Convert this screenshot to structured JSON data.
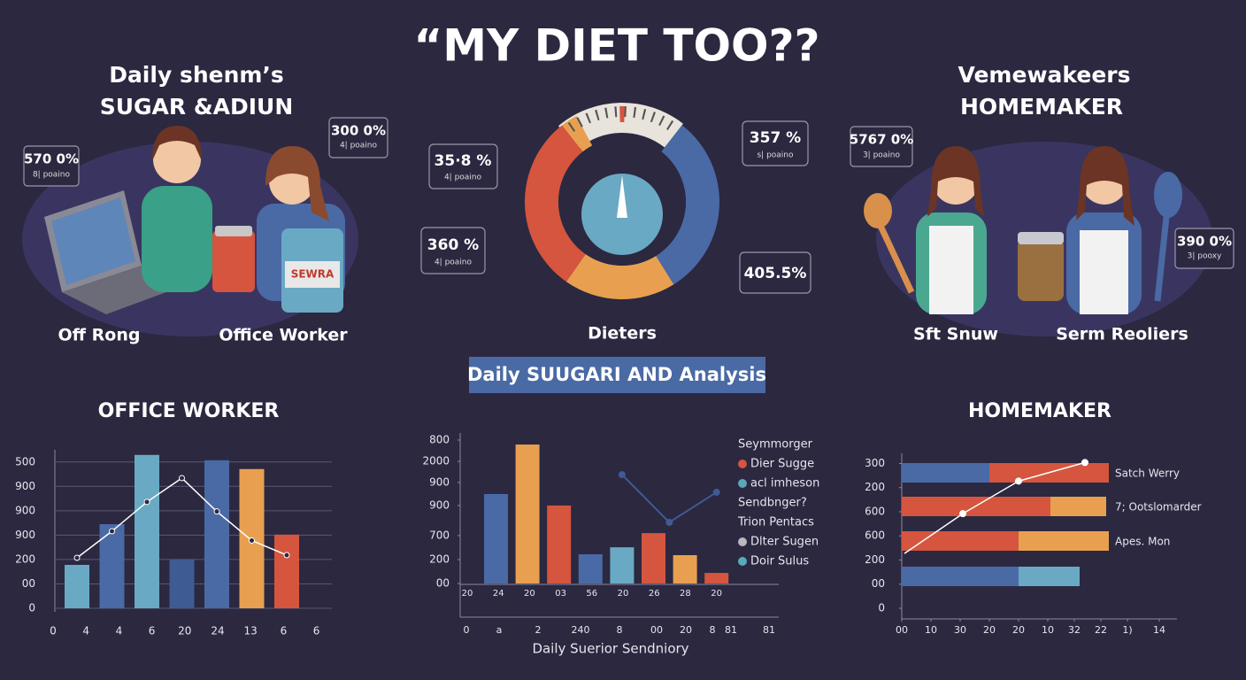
{
  "title": "“MY DIET TOO??",
  "left_panel": {
    "heading_line1": "Daily shenm’s",
    "heading_line2": "SUGAR &ADIUN",
    "callout_1": {
      "value": "570 0%",
      "sub": "8| poaino"
    },
    "callout_2": {
      "value": "300 0%",
      "sub": "4| poaino"
    },
    "label_1": "Off Rong",
    "label_2": "Office Worker"
  },
  "center_panel": {
    "callout_1": {
      "value": "35·8 %",
      "sub": "4| poaino"
    },
    "callout_2": {
      "value": "360 %",
      "sub": "4| poaino"
    },
    "callout_3": {
      "value": "357 %",
      "sub": "s| poaino"
    },
    "callout_4": {
      "value": "405.5%"
    },
    "label": "Dieters"
  },
  "right_panel": {
    "heading_line1": "Vemewakeers",
    "heading_line2": "HOMEMAKER",
    "callout_1": {
      "value": "5767 0%",
      "sub": "3| poaino"
    },
    "callout_2": {
      "value": "390 0%",
      "sub": "3| pooxy"
    },
    "label_1": "Sft Snuw",
    "label_2": "Serm Reoliers"
  },
  "banner": "Daily SUUGARI AND Analysis",
  "chart_data": [
    {
      "type": "bar",
      "title": "OFFICE WORKER",
      "values": [
        178,
        345,
        629,
        200,
        607,
        571,
        302
      ],
      "colors": [
        "#6aa9c4",
        "#4a6aa5",
        "#6aa9c4",
        "#3f5b94",
        "#4a6aa5",
        "#e8a050",
        "#d5553f"
      ],
      "ylim": [
        0,
        650
      ],
      "yticks": [
        0,
        {
          "value": 100,
          "label": "00"
        },
        200,
        {
          "value": 300,
          "label": "900"
        },
        {
          "value": 400,
          "label": "900"
        },
        {
          "value": 500,
          "label": "900"
        },
        {
          "value": 600,
          "label": "500"
        }
      ],
      "x_labels": [
        "0",
        "4",
        "4",
        "6",
        "20",
        "24",
        "13",
        "6",
        "6"
      ],
      "line": {
        "color": "#ffffff",
        "values": [
          207,
          316,
          436,
          534,
          397,
          278,
          218
        ]
      },
      "grid": true
    },
    {
      "type": "bar",
      "values": [
        499,
        775,
        435,
        163,
        202,
        281,
        158,
        59
      ],
      "colors": [
        "#4a6aa5",
        "#e8a050",
        "#d5553f",
        "#4a6aa5",
        "#6aa9c4",
        "#d5553f",
        "#e8a050",
        "#d5553f"
      ],
      "ylim": [
        0,
        800
      ],
      "yticks": [
        {
          "value": 0,
          "label": "00"
        },
        {
          "value": 133,
          "label": "200"
        },
        {
          "value": 267,
          "label": "700"
        },
        {
          "value": 435,
          "label": "900"
        },
        {
          "value": 563,
          "label": "900"
        },
        {
          "value": 681,
          "label": "2000"
        },
        800
      ],
      "x_labels": [
        "20",
        "24",
        "20",
        "03",
        "56",
        "20",
        "26",
        "28",
        "20"
      ],
      "x_labels_2": [
        "0",
        "a",
        "2",
        "240",
        "8",
        "00",
        "20",
        "8",
        "81",
        "81"
      ],
      "xlabel": "Daily Suerior Sendniory",
      "line": {
        "color": "#3f5b94",
        "x": [
          4,
          5.5,
          7
        ],
        "values": [
          607,
          341,
          509
        ]
      },
      "legend": [
        {
          "label": "Seymmorger"
        },
        {
          "label": "Dier Sugge",
          "color": "#d5553f"
        },
        {
          "label": "acl imheson",
          "color": "#5aa8b8"
        },
        {
          "label": "Sendbnger?"
        },
        {
          "label": "Trion Pentacs"
        },
        {
          "label": "Dlter Sugen",
          "color": "#b8b8c0"
        },
        {
          "label": "Doir Sulus",
          "color": "#5aa8b8"
        }
      ]
    },
    {
      "type": "barh",
      "title": "HOMEMAKER",
      "categories": [
        null,
        null,
        null,
        null
      ],
      "series": [
        {
          "colors": [
            "#4a6aa5",
            "#d5553f",
            "#d5553f",
            "#4a6aa5"
          ],
          "values": [
            33,
            56,
            44,
            44
          ]
        },
        {
          "colors": [
            "#d5553f",
            "#e8a050",
            "#e8a050",
            "#6aa9c4"
          ],
          "values": [
            45,
            21,
            34,
            23
          ]
        }
      ],
      "bar_labels": [
        "Satch Werry",
        "7; Ootslomarder",
        "Apes. Mon"
      ],
      "xlim": [
        0,
        100
      ],
      "xticks": [
        {
          "value": 0,
          "label": "00"
        },
        {
          "value": 11,
          "label": "10"
        },
        {
          "value": 22,
          "label": "30"
        },
        {
          "value": 33,
          "label": "20"
        },
        {
          "value": 44,
          "label": "20"
        },
        {
          "value": 55,
          "label": "10"
        },
        {
          "value": 65,
          "label": "32"
        },
        {
          "value": 75,
          "label": "22"
        },
        {
          "value": 85,
          "label": "1)"
        },
        {
          "value": 97,
          "label": "14"
        }
      ],
      "ylim": [
        0,
        620
      ],
      "yticks": [
        0,
        {
          "value": 100,
          "label": "00"
        },
        200,
        {
          "value": 300,
          "label": "600"
        },
        {
          "value": 400,
          "label": "600"
        },
        {
          "value": 500,
          "label": "200"
        },
        {
          "value": 600,
          "label": "300"
        }
      ],
      "trend": {
        "color": "#ffffff",
        "x": [
          1,
          23,
          44,
          69
        ],
        "values": [
          227,
          392,
          527,
          604
        ]
      }
    }
  ]
}
